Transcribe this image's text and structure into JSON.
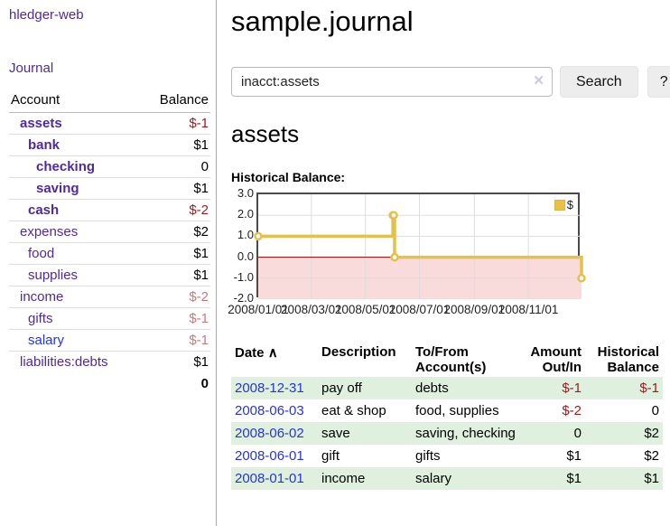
{
  "sidebar": {
    "app_title": "hledger-web",
    "journal_link": "Journal",
    "accounts_table": {
      "account_header": "Account",
      "balance_header": "Balance",
      "rows": [
        {
          "name": "assets",
          "indent": 0,
          "bold": true,
          "balance": "$-1",
          "balance_style": "neg-strong"
        },
        {
          "name": "bank",
          "indent": 1,
          "bold": true,
          "balance": "$1",
          "balance_style": "pos"
        },
        {
          "name": "checking",
          "indent": 2,
          "bold": true,
          "balance": "0",
          "balance_style": "pos"
        },
        {
          "name": "saving",
          "indent": 2,
          "bold": true,
          "balance": "$1",
          "balance_style": "pos"
        },
        {
          "name": "cash",
          "indent": 1,
          "bold": true,
          "balance": "$-2",
          "balance_style": "neg-strong"
        },
        {
          "name": "expenses",
          "indent": 0,
          "bold": false,
          "balance": "$2",
          "balance_style": "pos"
        },
        {
          "name": "food",
          "indent": 1,
          "bold": false,
          "balance": "$1",
          "balance_style": "pos"
        },
        {
          "name": "supplies",
          "indent": 1,
          "bold": false,
          "balance": "$1",
          "balance_style": "pos"
        },
        {
          "name": "income",
          "indent": 0,
          "bold": false,
          "balance": "$-2",
          "balance_style": "neg-soft"
        },
        {
          "name": "gifts",
          "indent": 1,
          "bold": false,
          "balance": "$-1",
          "balance_style": "neg-soft"
        },
        {
          "name": "salary",
          "indent": 1,
          "bold": false,
          "balance": "$-1",
          "balance_style": "neg-soft",
          "link_style": "blue"
        },
        {
          "name": "liabilities:debts",
          "indent": 0,
          "bold": false,
          "balance": "$1",
          "balance_style": "pos"
        }
      ],
      "total": "0"
    }
  },
  "header": {
    "title": "sample.journal"
  },
  "search": {
    "query": "inacct:assets",
    "clear_icon": "✕",
    "search_button": "Search",
    "help_button": "?"
  },
  "main": {
    "account_heading": "assets",
    "chart_label": "Historical Balance:"
  },
  "chart_data": {
    "type": "line",
    "step": true,
    "title": "Historical Balance:",
    "x_range": [
      "2008-01-01",
      "2008-12-31"
    ],
    "ylim": [
      -2.0,
      3.0
    ],
    "yticks": [
      3.0,
      2.0,
      1.0,
      0.0,
      -1.0,
      -2.0
    ],
    "xtick_labels": [
      "2008/01/01",
      "2008/03/01",
      "2008/05/01",
      "2008/07/01",
      "2008/09/01",
      "2008/11/01"
    ],
    "series": [
      {
        "name": "$",
        "color": "#e4c04c",
        "points": [
          {
            "date": "2008-01-01",
            "value": 1
          },
          {
            "date": "2008-06-01",
            "value": 2
          },
          {
            "date": "2008-06-02",
            "value": 2
          },
          {
            "date": "2008-06-03",
            "value": 0
          },
          {
            "date": "2008-12-31",
            "value": -1
          }
        ]
      }
    ],
    "legend_position": "top-right",
    "grid": true,
    "grid_color": "#dddddd",
    "negative_fill": "#fadbdb",
    "zero_line_color": "#8b0000"
  },
  "register_table": {
    "headers": {
      "date": "Date",
      "sort_indicator": "∧",
      "description": "Description",
      "accounts": "To/From Account(s)",
      "amount": "Amount Out/In",
      "balance": "Historical Balance"
    },
    "rows": [
      {
        "date": "2008-12-31",
        "description": "pay off",
        "accounts": "debts",
        "amount": "$-1",
        "amount_negative": true,
        "balance": "$-1",
        "balance_negative": true
      },
      {
        "date": "2008-06-03",
        "description": "eat & shop",
        "accounts": "food, supplies",
        "amount": "$-2",
        "amount_negative": true,
        "balance": "0",
        "balance_negative": false
      },
      {
        "date": "2008-06-02",
        "description": "save",
        "accounts": "saving, checking",
        "amount": "0",
        "amount_negative": false,
        "balance": "$2",
        "balance_negative": false
      },
      {
        "date": "2008-06-01",
        "description": "gift",
        "accounts": "gifts",
        "amount": "$1",
        "amount_negative": false,
        "balance": "$2",
        "balance_negative": false
      },
      {
        "date": "2008-01-01",
        "description": "income",
        "accounts": "salary",
        "amount": "$1",
        "amount_negative": false,
        "balance": "$1",
        "balance_negative": false
      }
    ]
  },
  "colors": {
    "link_purple": "#4f2a9c",
    "link_blue": "#2634d8",
    "negative_strong": "#9a1b1e",
    "negative_soft": "#c9787e",
    "row_stripe_green": "#dff0de",
    "chart_line_gold": "#e4c04c",
    "chart_negative_region": "#fadbdb"
  }
}
